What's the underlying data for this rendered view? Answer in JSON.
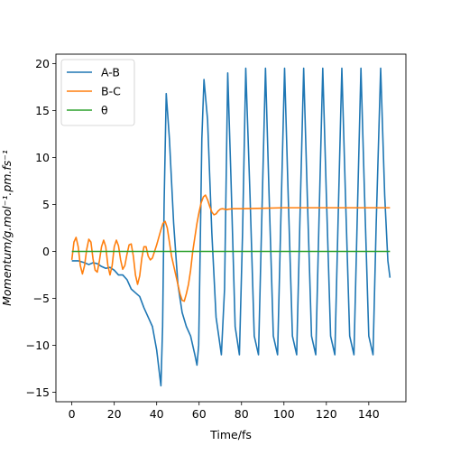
{
  "chart_data": {
    "type": "line",
    "title": "",
    "xlabel": "Time/fs",
    "ylabel": "Momentum/g.mol⁻¹.pm.fs⁻¹",
    "xlim": [
      -7.5,
      157.5
    ],
    "ylim": [
      -16,
      21
    ],
    "xticks": [
      0,
      20,
      40,
      60,
      80,
      100,
      120,
      140
    ],
    "yticks": [
      -15,
      -10,
      -5,
      0,
      5,
      10,
      15,
      20
    ],
    "grid": false,
    "legend_position": "top-left",
    "series": [
      {
        "name": "A-B",
        "color": "#1f77b4",
        "points": [
          [
            0,
            -1.0
          ],
          [
            3,
            -1.0
          ],
          [
            6,
            -1.2
          ],
          [
            8,
            -1.4
          ],
          [
            10,
            -1.2
          ],
          [
            12,
            -1.3
          ],
          [
            14,
            -1.6
          ],
          [
            16,
            -1.8
          ],
          [
            18,
            -1.7
          ],
          [
            20,
            -2.0
          ],
          [
            22,
            -2.5
          ],
          [
            24,
            -2.5
          ],
          [
            26,
            -3.0
          ],
          [
            28,
            -4.0
          ],
          [
            30,
            -4.4
          ],
          [
            32,
            -4.8
          ],
          [
            34,
            -6.0
          ],
          [
            36,
            -7.0
          ],
          [
            38,
            -8.0
          ],
          [
            40,
            -10.5
          ],
          [
            42,
            -14.3
          ],
          [
            42.8,
            -8.0
          ],
          [
            43.5,
            5.0
          ],
          [
            44.5,
            16.8
          ],
          [
            46,
            12.0
          ],
          [
            48,
            3.0
          ],
          [
            50,
            -3.5
          ],
          [
            52,
            -6.5
          ],
          [
            54,
            -8.0
          ],
          [
            56,
            -9.0
          ],
          [
            58,
            -11.0
          ],
          [
            59,
            -12.1
          ],
          [
            59.8,
            -10.0
          ],
          [
            60.5,
            0.0
          ],
          [
            61.3,
            12.0
          ],
          [
            62.3,
            18.3
          ],
          [
            64,
            14.0
          ],
          [
            66,
            2.0
          ],
          [
            68,
            -7.0
          ],
          [
            70.5,
            -11.0
          ],
          [
            72,
            -4.0
          ],
          [
            73.5,
            19.0
          ],
          [
            75,
            8.0
          ],
          [
            77,
            -8.0
          ],
          [
            79,
            -11.0
          ],
          [
            80.5,
            2.0
          ],
          [
            82,
            19.5
          ],
          [
            84,
            6.0
          ],
          [
            86,
            -9.0
          ],
          [
            88,
            -11.0
          ],
          [
            89.5,
            3.0
          ],
          [
            91.3,
            19.5
          ],
          [
            93,
            6.0
          ],
          [
            95,
            -9.0
          ],
          [
            97,
            -11.0
          ],
          [
            98.5,
            3.0
          ],
          [
            100.3,
            19.5
          ],
          [
            102,
            6.0
          ],
          [
            104,
            -9.0
          ],
          [
            106,
            -11.0
          ],
          [
            107.5,
            3.0
          ],
          [
            109.3,
            19.5
          ],
          [
            111,
            6.0
          ],
          [
            113,
            -9.0
          ],
          [
            115,
            -11.0
          ],
          [
            116.5,
            3.0
          ],
          [
            118.3,
            19.5
          ],
          [
            120,
            6.0
          ],
          [
            122,
            -9.0
          ],
          [
            124,
            -11.0
          ],
          [
            125.5,
            3.0
          ],
          [
            127.3,
            19.5
          ],
          [
            129,
            6.0
          ],
          [
            131,
            -9.0
          ],
          [
            133,
            -11.0
          ],
          [
            134.5,
            3.0
          ],
          [
            136.3,
            19.5
          ],
          [
            138,
            6.0
          ],
          [
            140,
            -9.0
          ],
          [
            142,
            -11.0
          ],
          [
            143.5,
            3.0
          ],
          [
            145.6,
            19.5
          ],
          [
            147.5,
            6.0
          ],
          [
            149,
            -1.0
          ],
          [
            150,
            -2.8
          ]
        ]
      },
      {
        "name": "B-C",
        "color": "#ff7f0e",
        "points": [
          [
            0,
            -0.9
          ],
          [
            1,
            1.0
          ],
          [
            2,
            1.5
          ],
          [
            3,
            0.5
          ],
          [
            4,
            -1.5
          ],
          [
            5,
            -2.4
          ],
          [
            6,
            -1.5
          ],
          [
            7,
            0.2
          ],
          [
            8,
            1.3
          ],
          [
            9,
            1.0
          ],
          [
            10,
            -0.8
          ],
          [
            11,
            -2.0
          ],
          [
            12,
            -2.2
          ],
          [
            13,
            -1.0
          ],
          [
            14,
            0.5
          ],
          [
            15,
            1.2
          ],
          [
            16,
            0.5
          ],
          [
            17,
            -1.5
          ],
          [
            18,
            -2.5
          ],
          [
            19,
            -1.5
          ],
          [
            20,
            0.5
          ],
          [
            21,
            1.2
          ],
          [
            22,
            0.6
          ],
          [
            23,
            -0.9
          ],
          [
            24,
            -1.9
          ],
          [
            25,
            -1.5
          ],
          [
            26,
            -0.3
          ],
          [
            27,
            0.7
          ],
          [
            28,
            0.8
          ],
          [
            29,
            -0.5
          ],
          [
            30,
            -2.5
          ],
          [
            31,
            -3.5
          ],
          [
            32,
            -2.6
          ],
          [
            33,
            -0.7
          ],
          [
            34,
            0.5
          ],
          [
            35,
            0.5
          ],
          [
            36,
            -0.5
          ],
          [
            37,
            -0.9
          ],
          [
            38,
            -0.7
          ],
          [
            39,
            0.0
          ],
          [
            40,
            0.7
          ],
          [
            41,
            1.5
          ],
          [
            42,
            2.3
          ],
          [
            43,
            3.0
          ],
          [
            44,
            3.2
          ],
          [
            45,
            2.5
          ],
          [
            46,
            1.0
          ],
          [
            47,
            -0.5
          ],
          [
            48,
            -1.5
          ],
          [
            49,
            -2.5
          ],
          [
            50,
            -3.5
          ],
          [
            51,
            -4.5
          ],
          [
            52,
            -5.2
          ],
          [
            53,
            -5.3
          ],
          [
            54,
            -4.5
          ],
          [
            55,
            -3.5
          ],
          [
            56,
            -2.0
          ],
          [
            57,
            0.0
          ],
          [
            58,
            1.5
          ],
          [
            59,
            3.0
          ],
          [
            60,
            4.2
          ],
          [
            61,
            5.2
          ],
          [
            62,
            5.8
          ],
          [
            63,
            6.0
          ],
          [
            64,
            5.5
          ],
          [
            65,
            4.8
          ],
          [
            66,
            4.2
          ],
          [
            67,
            3.9
          ],
          [
            68,
            4.0
          ],
          [
            69,
            4.3
          ],
          [
            70,
            4.5
          ],
          [
            71,
            4.55
          ],
          [
            72,
            4.5
          ],
          [
            73,
            4.45
          ],
          [
            74,
            4.5
          ],
          [
            76,
            4.55
          ],
          [
            80,
            4.55
          ],
          [
            90,
            4.6
          ],
          [
            100,
            4.65
          ],
          [
            110,
            4.65
          ],
          [
            120,
            4.65
          ],
          [
            130,
            4.65
          ],
          [
            140,
            4.65
          ],
          [
            150,
            4.65
          ]
        ]
      },
      {
        "name": "θ",
        "color": "#2ca02c",
        "points": [
          [
            0,
            0
          ],
          [
            150,
            0
          ]
        ]
      }
    ]
  }
}
